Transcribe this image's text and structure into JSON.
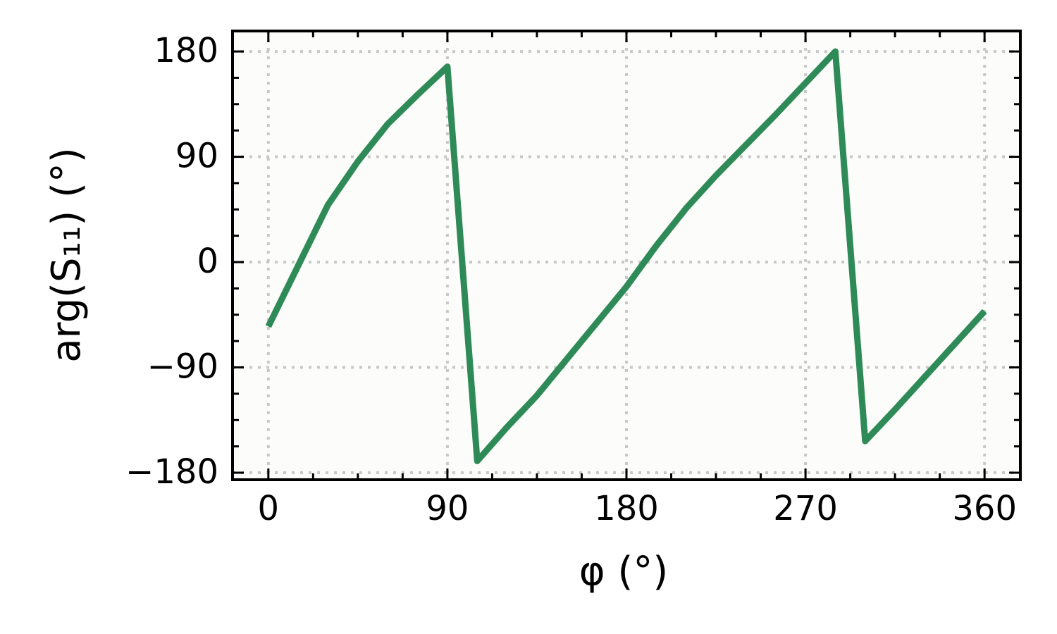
{
  "chart_data": {
    "type": "line",
    "x_label": "φ (°)",
    "y_label": "arg(S₁₁) (°)",
    "x": [
      0,
      15,
      30,
      45,
      60,
      75,
      90,
      105,
      120,
      135,
      150,
      165,
      180,
      195,
      210,
      225,
      240,
      255,
      270,
      285,
      300,
      315,
      330,
      345,
      360
    ],
    "series": [
      {
        "color": "#2e8b57",
        "values": [
          -55,
          -3,
          49,
          86,
          118,
          143,
          167,
          -170,
          -141,
          -114,
          -83,
          -52,
          -21,
          14,
          46,
          74,
          100,
          126,
          153,
          180,
          -153,
          -126,
          -98,
          -70,
          -42
        ]
      }
    ],
    "xlim": [
      -18,
      378
    ],
    "xticks": [
      0,
      90,
      180,
      270,
      360
    ],
    "ylim": [
      -186,
      197.5
    ],
    "yticks": [
      {
        "value": -180,
        "label": "−180"
      },
      {
        "value": -90,
        "label": "−90"
      },
      0,
      90,
      180
    ],
    "grid": true
  }
}
